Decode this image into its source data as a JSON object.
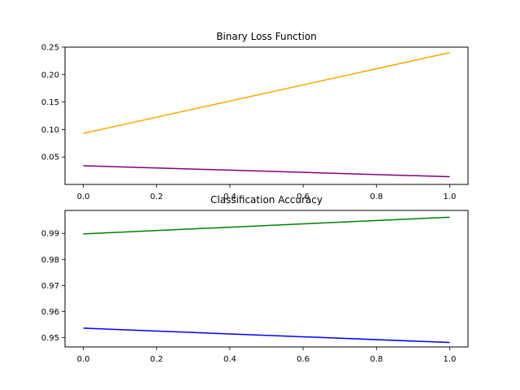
{
  "chart_data": [
    {
      "type": "line",
      "title": "Binary Loss Function",
      "xlabel": "",
      "ylabel": "",
      "xlim": [
        -0.05,
        1.05
      ],
      "ylim": [
        0.0,
        0.25
      ],
      "xticks": [
        0.0,
        0.2,
        0.4,
        0.6,
        0.8,
        1.0
      ],
      "xtick_labels": [
        "0.0",
        "0.2",
        "0.4",
        "0.6",
        "0.8",
        "1.0"
      ],
      "yticks": [
        0.05,
        0.1,
        0.15,
        0.2,
        0.25
      ],
      "ytick_labels": [
        "0.05",
        "0.10",
        "0.15",
        "0.20",
        "0.25"
      ],
      "grid": false,
      "series": [
        {
          "x": [
            0,
            1
          ],
          "y": [
            0.093,
            0.24
          ],
          "color": "#ffa500"
        },
        {
          "x": [
            0,
            1
          ],
          "y": [
            0.034,
            0.014
          ],
          "color": "#800080"
        }
      ]
    },
    {
      "type": "line",
      "title": "Classification Accuracy",
      "xlabel": "",
      "ylabel": "",
      "xlim": [
        -0.05,
        1.05
      ],
      "ylim": [
        0.9464,
        0.9988
      ],
      "xticks": [
        0.0,
        0.2,
        0.4,
        0.6,
        0.8,
        1.0
      ],
      "xtick_labels": [
        "0.0",
        "0.2",
        "0.4",
        "0.6",
        "0.8",
        "1.0"
      ],
      "yticks": [
        0.95,
        0.96,
        0.97,
        0.98,
        0.99
      ],
      "ytick_labels": [
        "0.95",
        "0.96",
        "0.97",
        "0.98",
        "0.99"
      ],
      "grid": false,
      "series": [
        {
          "x": [
            0,
            1
          ],
          "y": [
            0.9898,
            0.9962
          ],
          "color": "#008000"
        },
        {
          "x": [
            0,
            1
          ],
          "y": [
            0.9536,
            0.9481
          ],
          "color": "#0000ff"
        }
      ]
    }
  ]
}
